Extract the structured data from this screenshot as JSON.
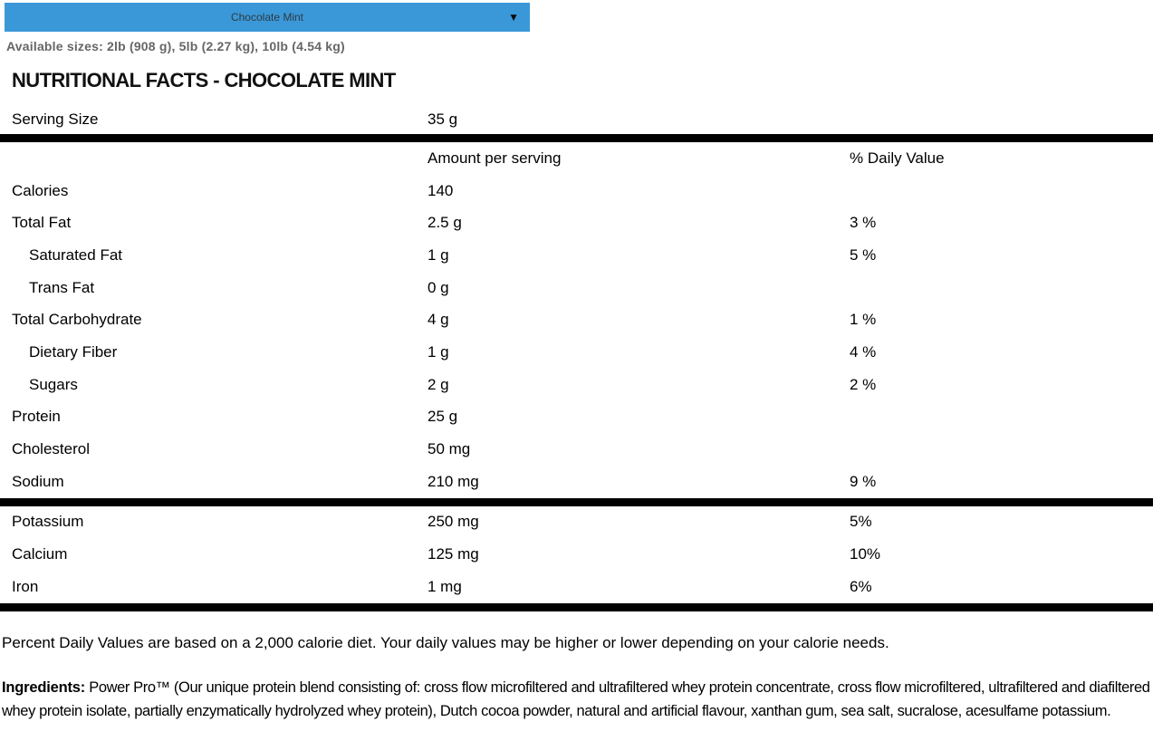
{
  "flavor_dropdown": {
    "selected": "Chocolate Mint"
  },
  "icons": {
    "chevron_down": "▼"
  },
  "available_sizes": "Available sizes: 2lb (908 g), 5lb (2.27 kg), 10lb (4.54 kg)",
  "title": "NUTRITIONAL FACTS - CHOCOLATE MINT",
  "serving_size": {
    "label": "Serving Size",
    "value": "35 g"
  },
  "table": {
    "columns": {
      "amount": "Amount per serving",
      "dv": "% Daily Value"
    },
    "rows": [
      {
        "label": "Calories",
        "amount": "140",
        "dv": ""
      },
      {
        "label": "Total Fat",
        "amount": "2.5 g",
        "dv": "3 %"
      },
      {
        "label": "Saturated Fat",
        "amount": "1 g",
        "dv": "5 %"
      },
      {
        "label": "Trans Fat",
        "amount": "0 g",
        "dv": ""
      },
      {
        "label": "Total Carbohydrate",
        "amount": "4 g",
        "dv": "1 %"
      },
      {
        "label": "Dietary Fiber",
        "amount": "1 g",
        "dv": "4 %"
      },
      {
        "label": "Sugars",
        "amount": "2 g",
        "dv": "2 %"
      },
      {
        "label": "Protein",
        "amount": "25 g",
        "dv": ""
      },
      {
        "label": "Cholesterol",
        "amount": "50 mg",
        "dv": ""
      },
      {
        "label": "Sodium",
        "amount": "210 mg",
        "dv": "9 %"
      }
    ],
    "minerals": [
      {
        "label": "Potassium",
        "amount": "250 mg",
        "dv": "5%"
      },
      {
        "label": "Calcium",
        "amount": "125 mg",
        "dv": "10%"
      },
      {
        "label": "Iron",
        "amount": "1 mg",
        "dv": "6%"
      }
    ]
  },
  "footnote": "Percent Daily Values are based on a 2,000 calorie diet. Your daily values may be higher or lower depending on your calorie needs.",
  "ingredients": {
    "label": "Ingredients:",
    "text": " Power Pro™ (Our unique protein blend consisting of: cross flow microfiltered and ultrafiltered whey protein concentrate, cross flow microfiltered, ultrafiltered and diafiltered whey protein isolate, partially enzymatically hydrolyzed whey protein), Dutch cocoa powder, natural and artificial flavour, xanthan gum, sea salt, sucralose, acesulfame potassium."
  },
  "colors": {
    "dropdown_bg": "#3b98d8",
    "dropdown_text": "#2d3a42",
    "sizes_text": "#666666",
    "body_text": "#000000"
  }
}
